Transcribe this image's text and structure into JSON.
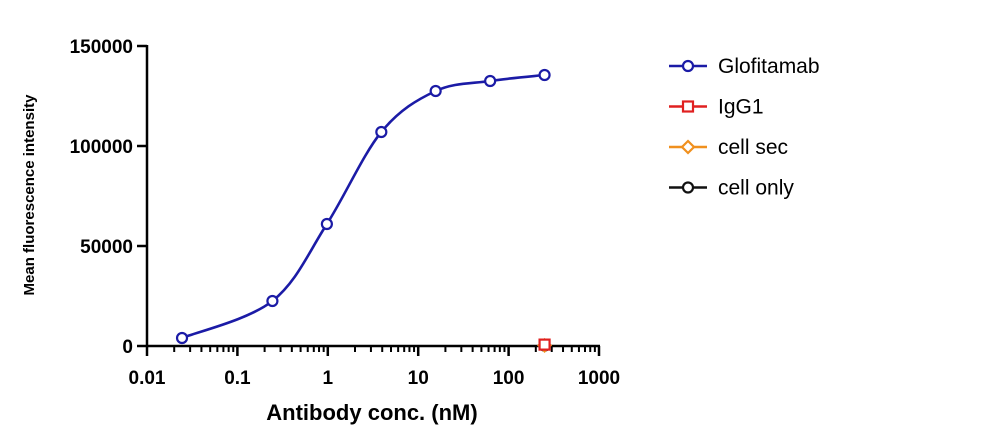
{
  "chart_data": {
    "type": "scatter",
    "title": "",
    "xlabel": "Antibody conc. (nM)",
    "ylabel": "Mean fluorescence intensity",
    "x_scale": "log",
    "xlim": [
      0.01,
      1000
    ],
    "ylim": [
      0,
      150000
    ],
    "x_ticks": [
      {
        "value": 0.01,
        "label": "0.01"
      },
      {
        "value": 0.1,
        "label": "0.1"
      },
      {
        "value": 1,
        "label": "1"
      },
      {
        "value": 10,
        "label": "10"
      },
      {
        "value": 100,
        "label": "100"
      },
      {
        "value": 1000,
        "label": "1000"
      }
    ],
    "y_ticks": [
      {
        "value": 0,
        "label": "0"
      },
      {
        "value": 50000,
        "label": "50000"
      },
      {
        "value": 100000,
        "label": "100000"
      },
      {
        "value": 150000,
        "label": "150000"
      }
    ],
    "grid": false,
    "legend_position": "right",
    "series": [
      {
        "name": "Glofitamab",
        "color": "#1b1ba6",
        "marker": "circle",
        "fit_curve": true,
        "x": [
          0.0244,
          0.244,
          0.977,
          3.91,
          15.6,
          62.5,
          250
        ],
        "y": [
          4000,
          22500,
          61000,
          107000,
          127500,
          132500,
          135500
        ]
      },
      {
        "name": "IgG1",
        "color": "#e02020",
        "marker": "square",
        "fit_curve": false,
        "x": [
          250
        ],
        "y": [
          700
        ]
      },
      {
        "name": "cell sec",
        "color": "#f0901e",
        "marker": "diamond",
        "fit_curve": false,
        "x": [
          250
        ],
        "y": [
          300
        ]
      },
      {
        "name": "cell only",
        "color": "#111111",
        "marker": "circle",
        "fit_curve": false,
        "x": [
          250
        ],
        "y": [
          200
        ]
      }
    ]
  }
}
